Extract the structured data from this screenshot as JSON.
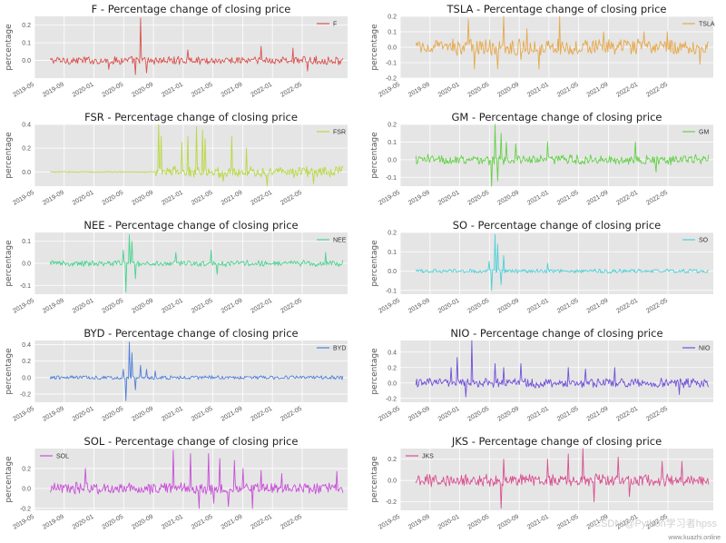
{
  "watermark": "CSDN @Python学习者hpss",
  "watermark_url": "www.kuazhi.online",
  "chart_data": [
    {
      "type": "line",
      "title": "F - Percentage change of closing price",
      "ylabel": "percentage",
      "legend": "F",
      "legend_position": "top-right",
      "color": "#d9534f",
      "grid": true,
      "ylim": [
        -0.1,
        0.25
      ],
      "yticks": [
        0,
        0.1,
        0.2
      ],
      "xticks": [
        "2019-05",
        "2019-09",
        "2020-01",
        "2020-05",
        "2020-09",
        "2021-01",
        "2021-05",
        "2021-09",
        "2022-01",
        "2022-05"
      ],
      "x_range": [
        "2019-06",
        "2022-06"
      ],
      "amplitude": 0.02,
      "spikes": [
        [
          0.31,
          0.24
        ],
        [
          0.29,
          -0.08
        ],
        [
          0.33,
          -0.07
        ],
        [
          0.2,
          -0.05
        ],
        [
          0.47,
          0.06
        ],
        [
          0.72,
          0.08
        ],
        [
          0.83,
          0.07
        ],
        [
          0.88,
          -0.06
        ]
      ]
    },
    {
      "type": "line",
      "title": "TSLA - Percentage change of closing price",
      "ylabel": "percentage",
      "legend": "TSLA",
      "legend_position": "top-right",
      "color": "#e5a94e",
      "grid": true,
      "ylim": [
        -0.2,
        0.2
      ],
      "yticks": [
        -0.2,
        -0.1,
        0,
        0.1,
        0.2
      ],
      "xticks": [
        "2019-05",
        "2019-09",
        "2020-01",
        "2020-05",
        "2020-09",
        "2021-01",
        "2021-05",
        "2021-09",
        "2022-01",
        "2022-05"
      ],
      "x_range": [
        "2019-06",
        "2022-06"
      ],
      "amplitude": 0.045,
      "spikes": [
        [
          0.18,
          0.18
        ],
        [
          0.2,
          -0.14
        ],
        [
          0.3,
          0.2
        ],
        [
          0.28,
          -0.14
        ],
        [
          0.38,
          0.12
        ],
        [
          0.42,
          -0.14
        ],
        [
          0.49,
          0.2
        ],
        [
          0.36,
          -0.08
        ],
        [
          0.64,
          0.1
        ],
        [
          0.78,
          0.1
        ],
        [
          0.86,
          0.1
        ],
        [
          0.97,
          -0.11
        ]
      ]
    },
    {
      "type": "line",
      "title": "FSR - Percentage change of closing price",
      "ylabel": "percentage",
      "legend": "FSR",
      "legend_position": "top-right",
      "color": "#b8d845",
      "grid": true,
      "ylim": [
        -0.12,
        0.4
      ],
      "yticks": [
        0,
        0.2,
        0.4
      ],
      "xticks": [
        "2019-05",
        "2019-09",
        "2020-01",
        "2020-05",
        "2020-09",
        "2021-01",
        "2021-05",
        "2021-09",
        "2022-01",
        "2022-05"
      ],
      "x_range": [
        "2019-06",
        "2022-06"
      ],
      "amplitude": 0.04,
      "calm_until": 0.36,
      "calm_amplitude": 0.004,
      "spikes": [
        [
          0.37,
          0.4
        ],
        [
          0.38,
          0.3
        ],
        [
          0.45,
          0.25
        ],
        [
          0.47,
          0.3
        ],
        [
          0.5,
          0.38
        ],
        [
          0.52,
          0.35
        ],
        [
          0.53,
          0.28
        ],
        [
          0.59,
          -0.08
        ],
        [
          0.62,
          0.3
        ],
        [
          0.67,
          0.2
        ],
        [
          0.74,
          -0.15
        ],
        [
          0.9,
          -0.1
        ]
      ]
    },
    {
      "type": "line",
      "title": "GM - Percentage change of closing price",
      "ylabel": "percentage",
      "legend": "GM",
      "legend_position": "top-right",
      "color": "#66d04a",
      "grid": true,
      "ylim": [
        -0.15,
        0.2
      ],
      "yticks": [
        -0.1,
        0,
        0.1,
        0.2
      ],
      "xticks": [
        "2019-05",
        "2019-09",
        "2020-01",
        "2020-05",
        "2020-09",
        "2021-01",
        "2021-05",
        "2021-09",
        "2022-01",
        "2022-05"
      ],
      "x_range": [
        "2019-06",
        "2022-06"
      ],
      "amplitude": 0.025,
      "spikes": [
        [
          0.27,
          0.2
        ],
        [
          0.26,
          -0.15
        ],
        [
          0.28,
          -0.12
        ],
        [
          0.29,
          0.15
        ],
        [
          0.31,
          0.1
        ],
        [
          0.34,
          0.09
        ],
        [
          0.45,
          0.1
        ],
        [
          0.75,
          0.1
        ],
        [
          0.82,
          -0.07
        ]
      ]
    },
    {
      "type": "line",
      "title": "NEE - Percentage change of closing price",
      "ylabel": "percentage",
      "legend": "NEE",
      "legend_position": "top-right",
      "color": "#4bd38f",
      "grid": true,
      "ylim": [
        -0.14,
        0.14
      ],
      "yticks": [
        -0.1,
        0,
        0.1
      ],
      "xticks": [
        "2019-05",
        "2019-09",
        "2020-01",
        "2020-05",
        "2020-09",
        "2021-01",
        "2021-05",
        "2021-09",
        "2022-01",
        "2022-05"
      ],
      "x_range": [
        "2019-06",
        "2022-06"
      ],
      "amplitude": 0.012,
      "spikes": [
        [
          0.27,
          0.13
        ],
        [
          0.26,
          -0.13
        ],
        [
          0.28,
          0.1
        ],
        [
          0.29,
          -0.07
        ],
        [
          0.25,
          0.06
        ],
        [
          0.43,
          0.05
        ],
        [
          0.55,
          0.06
        ],
        [
          0.57,
          -0.05
        ],
        [
          0.94,
          0.05
        ]
      ]
    },
    {
      "type": "line",
      "title": "SO - Percentage change of closing price",
      "ylabel": "percentage",
      "legend": "SO",
      "legend_position": "top-right",
      "color": "#4fcfd6",
      "grid": true,
      "ylim": [
        -0.12,
        0.2
      ],
      "yticks": [
        -0.1,
        0,
        0.1,
        0.2
      ],
      "xticks": [
        "2019-05",
        "2019-09",
        "2020-01",
        "2020-05",
        "2020-09",
        "2021-01",
        "2021-05",
        "2021-09",
        "2022-01",
        "2022-05"
      ],
      "x_range": [
        "2019-06",
        "2022-06"
      ],
      "amplitude": 0.009,
      "spikes": [
        [
          0.27,
          0.19
        ],
        [
          0.26,
          -0.1
        ],
        [
          0.28,
          0.14
        ],
        [
          0.29,
          -0.07
        ],
        [
          0.3,
          0.08
        ],
        [
          0.25,
          0.05
        ],
        [
          0.45,
          0.04
        ]
      ]
    },
    {
      "type": "line",
      "title": "BYD - Percentage change of closing price",
      "ylabel": "percentage",
      "legend": "BYD",
      "legend_position": "top-right",
      "color": "#4f7fd8",
      "grid": true,
      "ylim": [
        -0.3,
        0.45
      ],
      "yticks": [
        -0.2,
        0,
        0.2,
        0.4
      ],
      "xticks": [
        "2019-05",
        "2019-09",
        "2020-01",
        "2020-05",
        "2020-09",
        "2021-01",
        "2021-05",
        "2021-09",
        "2022-01",
        "2022-05"
      ],
      "x_range": [
        "2019-06",
        "2022-06"
      ],
      "amplitude": 0.02,
      "spikes": [
        [
          0.27,
          0.43
        ],
        [
          0.26,
          -0.28
        ],
        [
          0.28,
          0.3
        ],
        [
          0.29,
          -0.15
        ],
        [
          0.31,
          0.15
        ],
        [
          0.33,
          0.1
        ],
        [
          0.36,
          0.08
        ],
        [
          0.25,
          0.1
        ]
      ]
    },
    {
      "type": "line",
      "title": "NIO - Percentage change of closing price",
      "ylabel": "percentage",
      "legend": "NIO",
      "legend_position": "top-right",
      "color": "#7150d8",
      "grid": true,
      "ylim": [
        -0.25,
        0.55
      ],
      "yticks": [
        -0.2,
        0,
        0.2,
        0.4
      ],
      "xticks": [
        "2019-05",
        "2019-09",
        "2020-01",
        "2020-05",
        "2020-09",
        "2021-01",
        "2021-05",
        "2021-09",
        "2022-01",
        "2022-05"
      ],
      "x_range": [
        "2019-06",
        "2022-06"
      ],
      "amplitude": 0.05,
      "spikes": [
        [
          0.12,
          0.2
        ],
        [
          0.14,
          0.33
        ],
        [
          0.19,
          0.55
        ],
        [
          0.17,
          -0.18
        ],
        [
          0.27,
          0.25
        ],
        [
          0.3,
          0.2
        ],
        [
          0.36,
          0.25
        ],
        [
          0.52,
          0.2
        ],
        [
          0.58,
          0.18
        ],
        [
          0.68,
          0.2
        ],
        [
          0.9,
          -0.15
        ]
      ]
    },
    {
      "type": "line",
      "title": "SOL - Percentage change of closing price",
      "ylabel": "percentage",
      "legend": "SOL",
      "legend_position": "top-left",
      "color": "#c850d8",
      "grid": true,
      "ylim": [
        -0.22,
        0.4
      ],
      "yticks": [
        -0.2,
        0,
        0.2
      ],
      "xticks": [
        "2019-05",
        "2019-09",
        "2020-01",
        "2020-05",
        "2020-09",
        "2021-01",
        "2021-05",
        "2021-09",
        "2022-01",
        "2022-05"
      ],
      "x_range": [
        "2019-06",
        "2022-06"
      ],
      "amplitude": 0.05,
      "spikes": [
        [
          0.42,
          0.38
        ],
        [
          0.48,
          0.35
        ],
        [
          0.51,
          -0.2
        ],
        [
          0.54,
          0.35
        ],
        [
          0.56,
          -0.15
        ],
        [
          0.58,
          0.3
        ],
        [
          0.61,
          -0.18
        ],
        [
          0.63,
          0.28
        ],
        [
          0.66,
          0.2
        ],
        [
          0.69,
          -0.2
        ],
        [
          0.72,
          0.18
        ],
        [
          0.79,
          0.15
        ],
        [
          0.12,
          0.2
        ],
        [
          0.98,
          0.17
        ]
      ]
    },
    {
      "type": "line",
      "title": "JKS - Percentage change of closing price",
      "ylabel": "percentage",
      "legend": "JKS",
      "legend_position": "top-left",
      "color": "#d8508f",
      "grid": true,
      "ylim": [
        -0.28,
        0.3
      ],
      "yticks": [
        -0.2,
        0,
        0.2
      ],
      "xticks": [
        "2019-05",
        "2019-09",
        "2020-01",
        "2020-05",
        "2020-09",
        "2021-01",
        "2021-05",
        "2021-09",
        "2022-01",
        "2022-05"
      ],
      "x_range": [
        "2019-06",
        "2022-06"
      ],
      "amplitude": 0.05,
      "spikes": [
        [
          0.29,
          -0.26
        ],
        [
          0.3,
          0.2
        ],
        [
          0.45,
          0.2
        ],
        [
          0.52,
          0.25
        ],
        [
          0.57,
          0.3
        ],
        [
          0.61,
          -0.2
        ],
        [
          0.69,
          0.22
        ],
        [
          0.73,
          -0.15
        ],
        [
          0.84,
          0.18
        ],
        [
          0.91,
          0.18
        ]
      ]
    }
  ]
}
